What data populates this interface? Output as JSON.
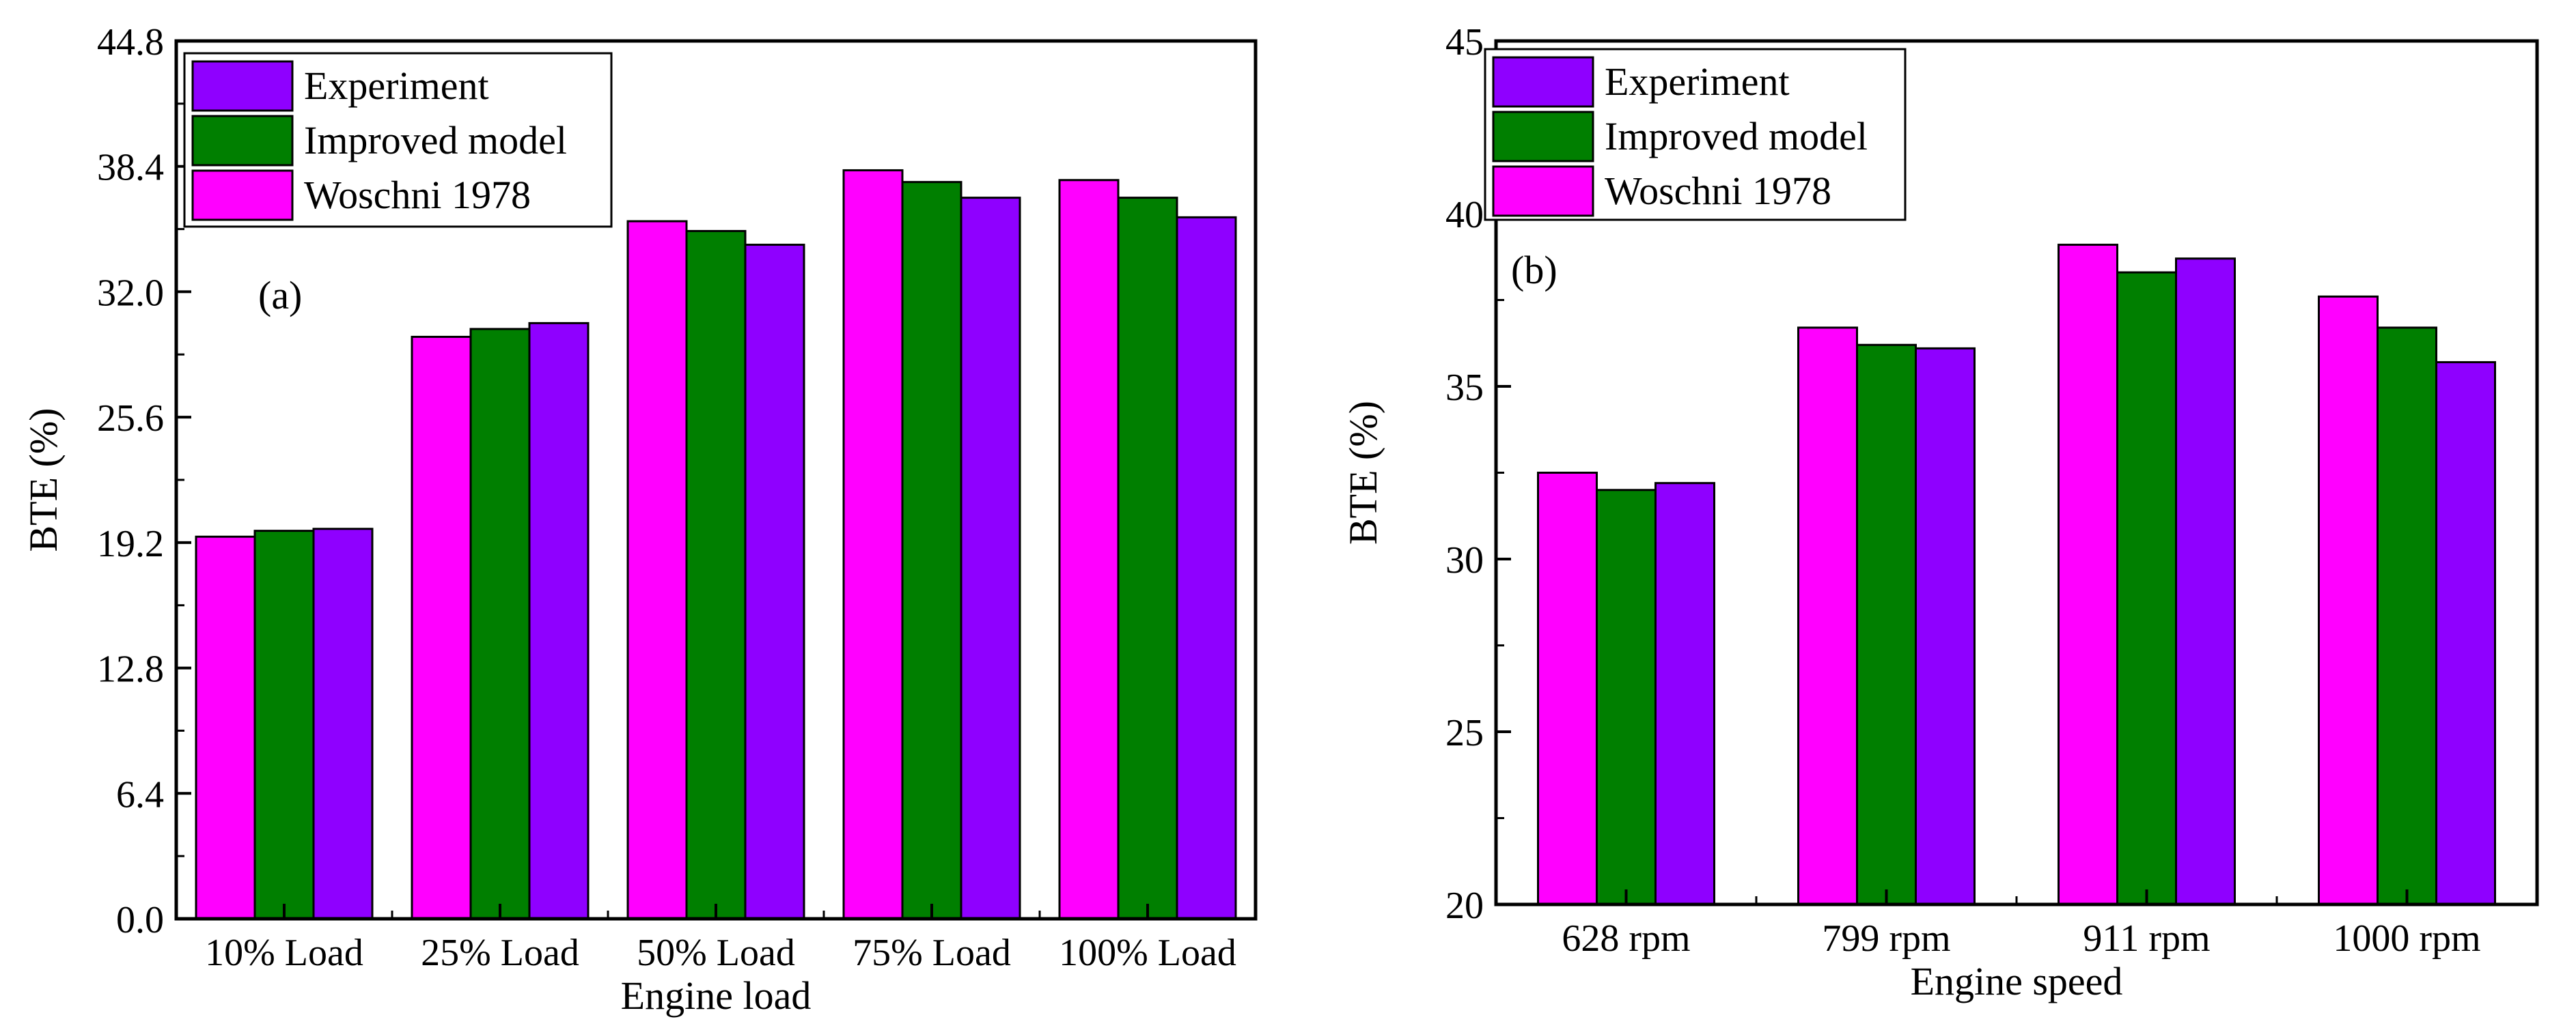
{
  "chart_data": [
    {
      "type": "bar",
      "panel_label": "(a)",
      "xlabel": "Engine load",
      "ylabel": "BTE (%)",
      "ylim": [
        0,
        44.8
      ],
      "yticks": [
        "0.0",
        "6.4",
        "12.8",
        "19.2",
        "25.6",
        "32.0",
        "38.4",
        "44.8"
      ],
      "categories": [
        "10% Load",
        "25% Load",
        "50% Load",
        "75% Load",
        "100% Load"
      ],
      "legend_position": "top-left",
      "series": [
        {
          "name": "Woschni 1978",
          "color": "#ff00ff",
          "values": [
            19.5,
            29.7,
            35.6,
            38.2,
            37.7
          ]
        },
        {
          "name": "Improved model",
          "color": "#007f00",
          "values": [
            19.8,
            30.1,
            35.1,
            37.6,
            36.8
          ]
        },
        {
          "name": "Experiment",
          "color": "#8f00ff",
          "values": [
            19.9,
            30.4,
            34.4,
            36.8,
            35.8
          ]
        }
      ],
      "legend_order": [
        "Experiment",
        "Improved model",
        "Woschni 1978"
      ]
    },
    {
      "type": "bar",
      "panel_label": "(b)",
      "xlabel": "Engine speed",
      "ylabel": "BTE (%)",
      "ylim": [
        20,
        45
      ],
      "yticks": [
        "20",
        "25",
        "30",
        "35",
        "40",
        "45"
      ],
      "categories": [
        "628 rpm",
        "799 rpm",
        "911 rpm",
        "1000 rpm"
      ],
      "legend_position": "top-left",
      "series": [
        {
          "name": "Woschni 1978",
          "color": "#ff00ff",
          "values": [
            32.5,
            36.7,
            39.1,
            37.6
          ]
        },
        {
          "name": "Improved model",
          "color": "#007f00",
          "values": [
            32.0,
            36.2,
            38.3,
            36.7
          ]
        },
        {
          "name": "Experiment",
          "color": "#8f00ff",
          "values": [
            32.2,
            36.1,
            38.7,
            35.7
          ]
        }
      ],
      "legend_order": [
        "Experiment",
        "Improved model",
        "Woschni 1978"
      ]
    }
  ]
}
